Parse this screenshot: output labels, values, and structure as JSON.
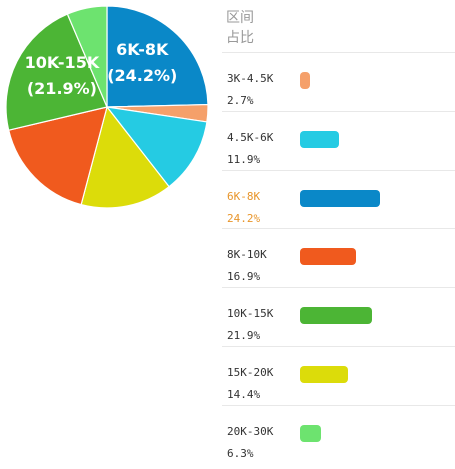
{
  "header": {
    "line1": "区间",
    "line2": "占比"
  },
  "chart_data": {
    "type": "pie",
    "start_angle_deg": 90,
    "direction": "clockwise",
    "highlighted": "6K-8K",
    "categories": [
      "6K-8K",
      "3K-4.5K",
      "4.5K-6K",
      "15K-20K",
      "8K-10K",
      "10K-15K",
      "20K-30K"
    ],
    "slices": [
      {
        "label": "3K-4.5K",
        "value": 2.7,
        "display": "2.7%",
        "color": "#f5a06a"
      },
      {
        "label": "4.5K-6K",
        "value": 11.9,
        "display": "11.9%",
        "color": "#25cbe3"
      },
      {
        "label": "6K-8K",
        "value": 24.2,
        "display": "24.2%",
        "color": "#0a88c8"
      },
      {
        "label": "8K-10K",
        "value": 16.9,
        "display": "16.9%",
        "color": "#f05a1e"
      },
      {
        "label": "10K-15K",
        "value": 21.9,
        "display": "21.9%",
        "color": "#4cb535"
      },
      {
        "label": "15K-20K",
        "value": 14.4,
        "display": "14.4%",
        "color": "#dcdc0a"
      },
      {
        "label": "20K-30K",
        "value": 6.3,
        "display": "6.3%",
        "color": "#6de36f"
      }
    ],
    "pie_labels": [
      {
        "label": "6K-8K",
        "value": "(24.2%)"
      },
      {
        "label": "10K-15K",
        "value": "(21.9%)"
      }
    ]
  }
}
